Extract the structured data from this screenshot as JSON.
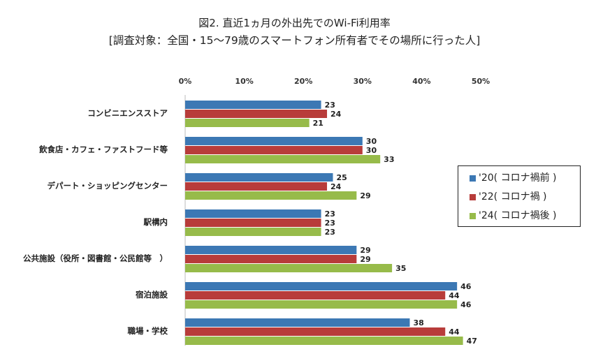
{
  "chart_data": {
    "type": "bar",
    "orientation": "horizontal",
    "title": "図2. 直近1ヵ月の外出先でのWi-Fi利用率",
    "subtitle": "[調査対象：全国・15～79歳のスマートフォン所有者でその場所に行った人]",
    "categories": [
      "コンビニエンスストア",
      "飲食店・カフェ・ファストフード等",
      "デパート・ショッピングセンター",
      "駅構内",
      "公共施設（役所・図書館・公民館等　）",
      "宿泊施設",
      "職場・学校"
    ],
    "series": [
      {
        "name": "'20( コロナ禍前 )",
        "color": "#3c78b4",
        "values": [
          23,
          30,
          25,
          23,
          29,
          46,
          38
        ]
      },
      {
        "name": "'22( コロナ禍 )",
        "color": "#b83c3a",
        "values": [
          24,
          30,
          24,
          23,
          29,
          44,
          44
        ]
      },
      {
        "name": "'24( コロナ禍後 )",
        "color": "#97bb4a",
        "values": [
          21,
          33,
          29,
          23,
          35,
          46,
          47
        ]
      }
    ],
    "xlim": [
      0,
      50
    ],
    "x_ticks": [
      "0%",
      "10%",
      "20%",
      "30%",
      "40%",
      "50%"
    ],
    "xaxis_position": "top",
    "grid": false,
    "legend_position": "right"
  }
}
